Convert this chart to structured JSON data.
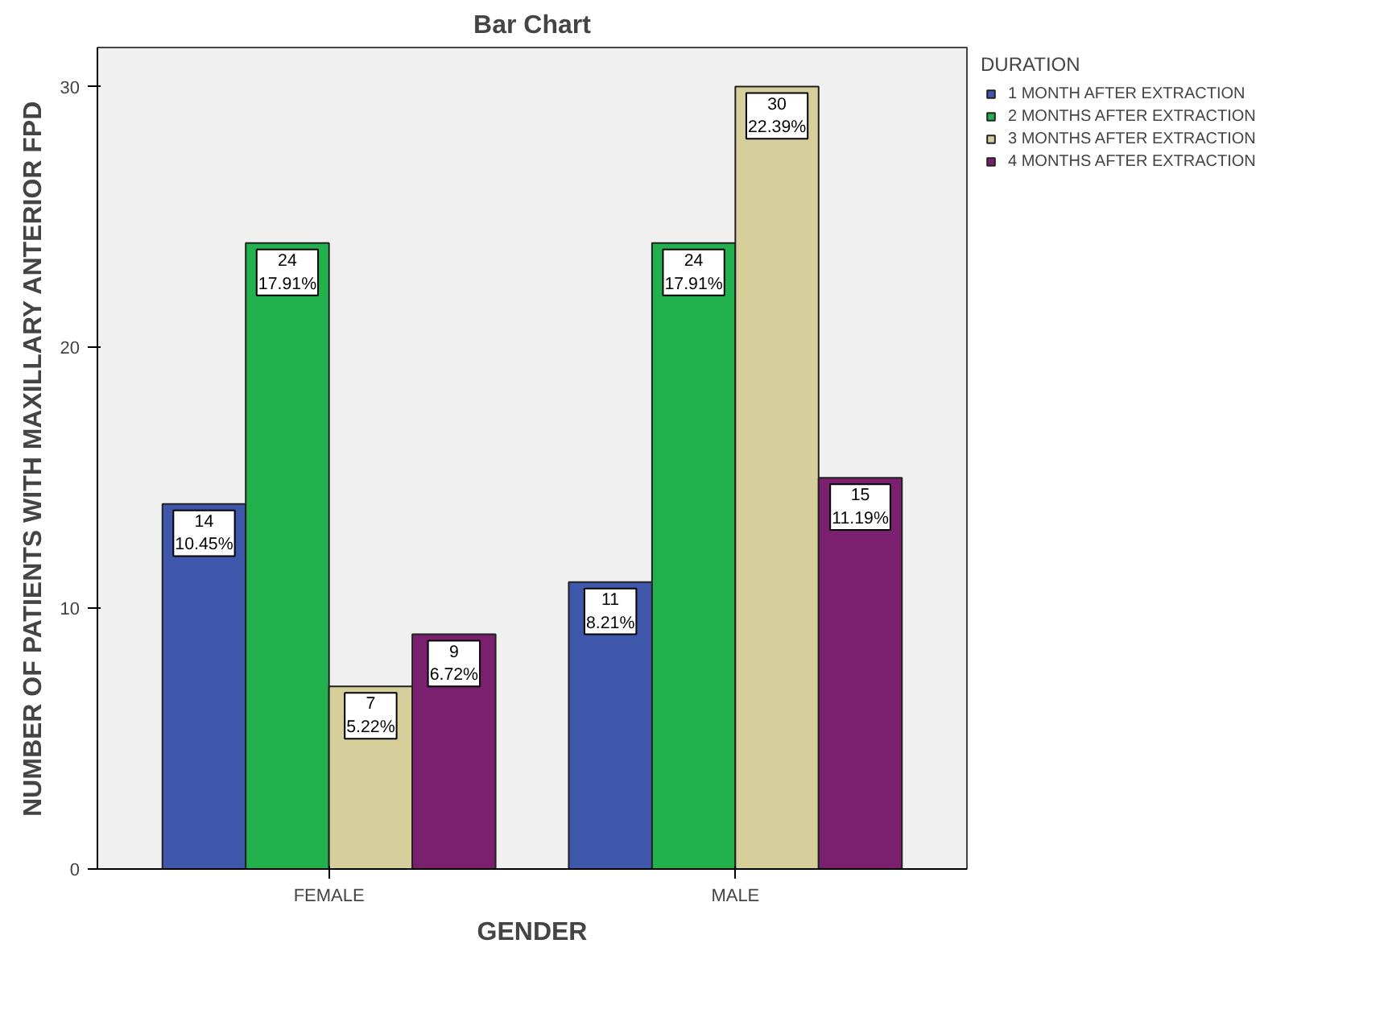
{
  "chart_data": {
    "type": "bar",
    "title": "Bar Chart",
    "xlabel": "GENDER",
    "ylabel": "NUMBER OF PATIENTS WITH MAXILLARY ANTERIOR FPD",
    "legend_title": "DURATION",
    "categories": [
      "FEMALE",
      "MALE"
    ],
    "series": [
      {
        "name": "1 MONTH AFTER EXTRACTION",
        "color": "#3f57ab",
        "values": [
          14,
          11
        ],
        "value_labels": [
          "14\n10.45%",
          "11\n8.21%"
        ]
      },
      {
        "name": "2 MONTHS AFTER EXTRACTION",
        "color": "#22b14c",
        "values": [
          24,
          24
        ],
        "value_labels": [
          "24\n17.91%",
          "24\n17.91%"
        ]
      },
      {
        "name": "3 MONTHS AFTER EXTRACTION",
        "color": "#d6cf9b",
        "values": [
          7,
          30
        ],
        "value_labels": [
          "7\n5.22%",
          "30\n22.39%"
        ]
      },
      {
        "name": "4 MONTHS AFTER EXTRACTION",
        "color": "#7b206f",
        "values": [
          9,
          15
        ],
        "value_labels": [
          "9\n6.72%",
          "15\n11.19%"
        ]
      }
    ],
    "ylim": [
      0,
      31.5
    ],
    "yticks": [
      0,
      10,
      20,
      30
    ],
    "grid": false,
    "legend": "right"
  }
}
